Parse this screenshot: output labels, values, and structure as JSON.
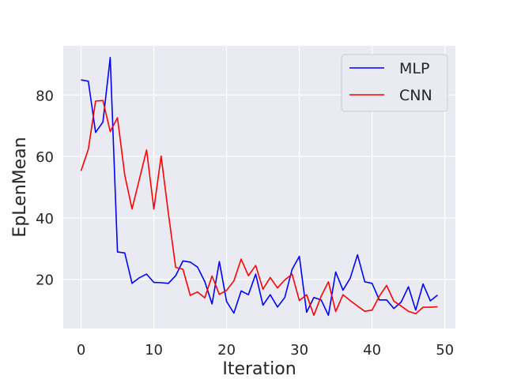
{
  "chart_data": {
    "type": "line",
    "title": "",
    "xlabel": "Iteration",
    "ylabel": "EpLenMean",
    "xlim": [
      -2.45,
      51.45
    ],
    "ylim": [
      4,
      96
    ],
    "x_ticks": [
      0,
      10,
      20,
      30,
      40,
      50
    ],
    "y_ticks": [
      20,
      40,
      60,
      80
    ],
    "grid": true,
    "legend_position": "top-right",
    "background_color": "#eaeaf2",
    "grid_color": "#ffffff",
    "series": [
      {
        "name": "MLP",
        "color": "#0000ff",
        "x": [
          0,
          1,
          2,
          3,
          4,
          5,
          6,
          7,
          8,
          9,
          10,
          11,
          12,
          13,
          14,
          15,
          16,
          17,
          18,
          19,
          20,
          21,
          22,
          23,
          24,
          25,
          26,
          27,
          28,
          29,
          30,
          31,
          32,
          33,
          34,
          35,
          36,
          37,
          38,
          39,
          40,
          41,
          42,
          43,
          44,
          45,
          46,
          47,
          48,
          49
        ],
        "values": [
          84.9,
          84.5,
          67.8,
          71.2,
          92.2,
          28.9,
          28.6,
          18.7,
          20.5,
          21.7,
          19.0,
          18.9,
          18.7,
          21.2,
          26.0,
          25.6,
          24.0,
          19.3,
          12.0,
          25.8,
          12.8,
          9.0,
          16.2,
          15.0,
          21.7,
          11.6,
          15.0,
          11.0,
          14.1,
          23.2,
          27.5,
          9.3,
          14.1,
          13.3,
          8.3,
          22.4,
          16.5,
          20.4,
          28.0,
          19.2,
          18.7,
          13.3,
          13.3,
          10.5,
          12.6,
          17.6,
          10.0,
          18.5,
          13.0,
          14.9
        ]
      },
      {
        "name": "CNN",
        "color": "#ff0000",
        "x": [
          0,
          1,
          2,
          3,
          4,
          5,
          6,
          7,
          8,
          9,
          10,
          11,
          12,
          13,
          14,
          15,
          16,
          17,
          18,
          19,
          20,
          21,
          22,
          23,
          24,
          25,
          26,
          27,
          28,
          29,
          30,
          31,
          32,
          33,
          34,
          35,
          36,
          37,
          38,
          39,
          40,
          41,
          42,
          43,
          44,
          45,
          46,
          47,
          48,
          49
        ],
        "values": [
          55.3,
          62.3,
          78.0,
          78.2,
          68.1,
          72.6,
          53.9,
          42.9,
          52.5,
          62.1,
          42.9,
          60.1,
          41.4,
          23.9,
          23.3,
          14.8,
          15.9,
          14.0,
          21.1,
          15.1,
          16.4,
          19.5,
          26.6,
          21.2,
          24.5,
          16.8,
          20.6,
          17.2,
          19.8,
          21.7,
          13.1,
          15.0,
          8.3,
          14.5,
          19.2,
          9.5,
          15.0,
          13.1,
          11.3,
          9.6,
          10.0,
          14.5,
          18.0,
          12.9,
          11.3,
          9.6,
          8.8,
          10.9,
          10.9,
          11.1
        ]
      }
    ]
  }
}
